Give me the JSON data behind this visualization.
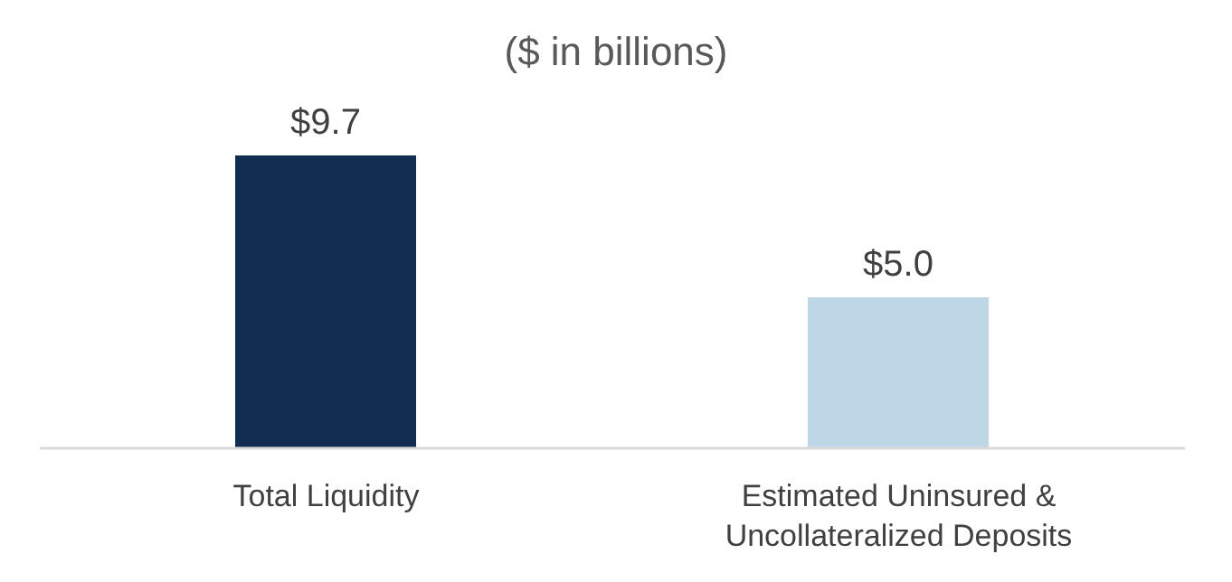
{
  "chart_data": {
    "type": "bar",
    "title": "($ in billions)",
    "categories": [
      "Total Liquidity",
      "Estimated Uninsured & Uncollateralized Deposits"
    ],
    "values": [
      9.7,
      5.0
    ],
    "colors": [
      "#112e51",
      "#bdd7e7"
    ],
    "value_labels": [
      "$9.7",
      "$5.0"
    ]
  }
}
